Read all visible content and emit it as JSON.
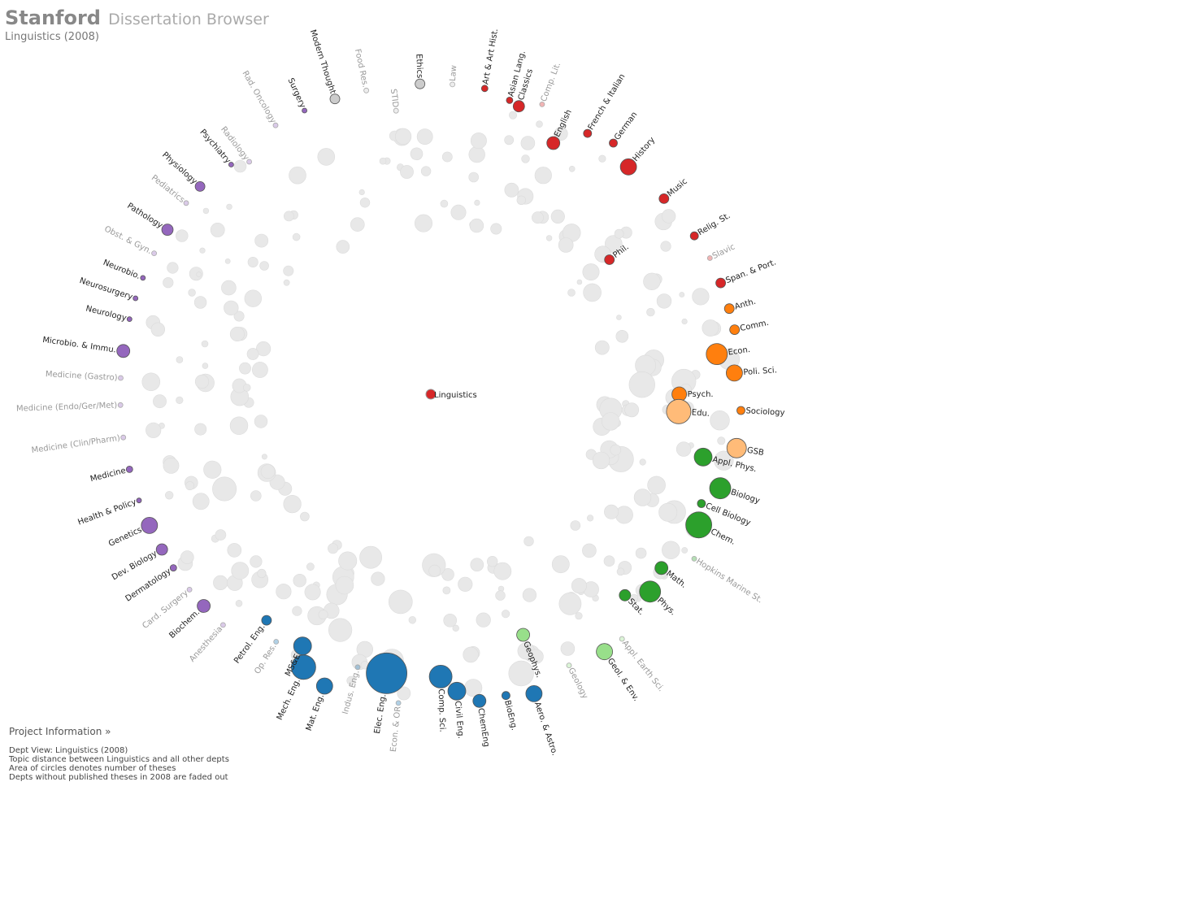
{
  "header": {
    "brand": "Stanford",
    "app_title": "Dissertation Browser",
    "subtitle": "Linguistics (2008)"
  },
  "footer": {
    "project_link": "Project Information »",
    "notes": [
      "Dept View: Linguistics (2008)",
      "Topic distance between Linguistics and all other depts",
      "Area of circles denotes number of theses",
      "Depts without published theses in 2008 are faded out"
    ]
  },
  "colors": {
    "humanities": "#d62728",
    "social": "#ff7f0e",
    "social_light": "#ffbb78",
    "science": "#2ca02c",
    "earth": "#98df8a",
    "engineering": "#1f77b4",
    "medicine": "#9467bd",
    "neutral": "#cccccc"
  },
  "chart_data": {
    "type": "scatter",
    "center": {
      "label": "Linguistics",
      "group": "humanities"
    },
    "departments": [
      {
        "label": "Classics",
        "angle": -73,
        "dist": 0.97,
        "size": 7,
        "group": "humanities",
        "active": true
      },
      {
        "label": "Comp. Lit.",
        "angle": -69,
        "dist": 1.0,
        "size": 3,
        "group": "humanities",
        "active": false
      },
      {
        "label": "English",
        "angle": -64,
        "dist": 0.9,
        "size": 8,
        "group": "humanities",
        "active": true
      },
      {
        "label": "French & Italian",
        "angle": -59,
        "dist": 0.98,
        "size": 5,
        "group": "humanities",
        "active": true
      },
      {
        "label": "German",
        "angle": -54,
        "dist": 1.0,
        "size": 5,
        "group": "humanities",
        "active": true
      },
      {
        "label": "History",
        "angle": -49,
        "dist": 0.97,
        "size": 10,
        "group": "humanities",
        "active": true
      },
      {
        "label": "Music",
        "angle": -40,
        "dist": 0.98,
        "size": 6,
        "group": "humanities",
        "active": true
      },
      {
        "label": "Relig. St.",
        "angle": -31,
        "dist": 0.99,
        "size": 5,
        "group": "humanities",
        "active": true
      },
      {
        "label": "Slavic",
        "angle": -26,
        "dist": 1.0,
        "size": 3,
        "group": "humanities",
        "active": false
      },
      {
        "label": "Span. & Port.",
        "angle": -21,
        "dist": 1.0,
        "size": 6,
        "group": "humanities",
        "active": true
      },
      {
        "label": "Phil.",
        "angle": -37,
        "dist": 0.72,
        "size": 6,
        "group": "humanities",
        "active": true
      },
      {
        "label": "Anth.",
        "angle": -16,
        "dist": 1.0,
        "size": 6,
        "group": "social",
        "active": true
      },
      {
        "label": "Comm.",
        "angle": -12,
        "dist": 1.0,
        "size": 6,
        "group": "social",
        "active": true
      },
      {
        "label": "Econ.",
        "angle": -8,
        "dist": 0.93,
        "size": 13,
        "group": "social",
        "active": true
      },
      {
        "label": "Poli. Sci.",
        "angle": -4,
        "dist": 0.98,
        "size": 10,
        "group": "social",
        "active": true
      },
      {
        "label": "Psych.",
        "angle": 0,
        "dist": 0.8,
        "size": 9,
        "group": "social",
        "active": true
      },
      {
        "label": "Sociology",
        "angle": 3,
        "dist": 1.0,
        "size": 5,
        "group": "social",
        "active": true
      },
      {
        "label": "Edu.",
        "angle": 4,
        "dist": 0.8,
        "size": 15,
        "group": "social_light",
        "active": true
      },
      {
        "label": "GSB",
        "angle": 10,
        "dist": 1.0,
        "size": 12,
        "group": "social_light",
        "active": true
      },
      {
        "label": "Appl. Phys.",
        "angle": 13,
        "dist": 0.9,
        "size": 11,
        "group": "science",
        "active": true
      },
      {
        "label": "Biology",
        "angle": 18,
        "dist": 0.98,
        "size": 13,
        "group": "science",
        "active": true
      },
      {
        "label": "Cell Biology",
        "angle": 22,
        "dist": 0.94,
        "size": 5,
        "group": "science",
        "active": true
      },
      {
        "label": "Chem.",
        "angle": 26,
        "dist": 0.96,
        "size": 16,
        "group": "science",
        "active": true
      },
      {
        "label": "Hopkins Marine St.",
        "angle": 32,
        "dist": 1.0,
        "size": 3,
        "group": "science",
        "active": false
      },
      {
        "label": "Math.",
        "angle": 37,
        "dist": 0.93,
        "size": 8,
        "group": "science",
        "active": true
      },
      {
        "label": "Phys.",
        "angle": 42,
        "dist": 0.95,
        "size": 13,
        "group": "science",
        "active": true
      },
      {
        "label": "Stat.",
        "angle": 46,
        "dist": 0.9,
        "size": 7,
        "group": "science",
        "active": true
      },
      {
        "label": "Appl. Earth Sci.",
        "angle": 52,
        "dist": 1.0,
        "size": 3,
        "group": "earth",
        "active": false
      },
      {
        "label": "Geol. & Env.",
        "angle": 56,
        "dist": 1.0,
        "size": 10,
        "group": "earth",
        "active": true
      },
      {
        "label": "Geology",
        "angle": 63,
        "dist": 0.98,
        "size": 3,
        "group": "earth",
        "active": false
      },
      {
        "label": "Geophys.",
        "angle": 69,
        "dist": 0.83,
        "size": 8,
        "group": "earth",
        "active": true
      },
      {
        "label": "Aero. & Astro.",
        "angle": 71,
        "dist": 1.02,
        "size": 10,
        "group": "engineering",
        "active": true
      },
      {
        "label": "BioEng.",
        "angle": 76,
        "dist": 1.0,
        "size": 5,
        "group": "engineering",
        "active": true
      },
      {
        "label": "ChemEng",
        "angle": 81,
        "dist": 1.0,
        "size": 8,
        "group": "engineering",
        "active": true
      },
      {
        "label": "Civil Eng.",
        "angle": 85,
        "dist": 0.96,
        "size": 11,
        "group": "engineering",
        "active": true
      },
      {
        "label": "Comp. Sci.",
        "angle": 88,
        "dist": 0.91,
        "size": 14,
        "group": "engineering",
        "active": true
      },
      {
        "label": "Econ. & OR",
        "angle": 96,
        "dist": 1.0,
        "size": 3,
        "group": "engineering",
        "active": false
      },
      {
        "label": "Elec. Eng.",
        "angle": 99,
        "dist": 0.91,
        "size": 25,
        "group": "engineering",
        "active": true
      },
      {
        "label": "Indus. Eng.",
        "angle": 105,
        "dist": 0.91,
        "size": 3,
        "group": "engineering",
        "active": false
      },
      {
        "label": "Mat. Eng.",
        "angle": 110,
        "dist": 1.0,
        "size": 10,
        "group": "engineering",
        "active": true
      },
      {
        "label": "Mech. Eng.",
        "angle": 115,
        "dist": 0.97,
        "size": 15,
        "group": "engineering",
        "active": true
      },
      {
        "label": "MS&E",
        "angle": 117,
        "dist": 0.91,
        "size": 11,
        "group": "engineering",
        "active": true
      },
      {
        "label": "Op. Res.",
        "angle": 122,
        "dist": 0.94,
        "size": 3,
        "group": "engineering",
        "active": false
      },
      {
        "label": "Petrol. Eng.",
        "angle": 126,
        "dist": 0.9,
        "size": 6,
        "group": "engineering",
        "active": true
      },
      {
        "label": "Anesthesia",
        "angle": 132,
        "dist": 1.0,
        "size": 3,
        "group": "medicine",
        "active": false
      },
      {
        "label": "Biochem.",
        "angle": 137,
        "dist": 1.0,
        "size": 8,
        "group": "medicine",
        "active": true
      },
      {
        "label": "Card. Surgery",
        "angle": 141,
        "dist": 1.0,
        "size": 3,
        "group": "medicine",
        "active": false
      },
      {
        "label": "Dermatology",
        "angle": 146,
        "dist": 1.0,
        "size": 4,
        "group": "medicine",
        "active": true
      },
      {
        "label": "Dev. Biology",
        "angle": 150,
        "dist": 1.0,
        "size": 7,
        "group": "medicine",
        "active": true
      },
      {
        "label": "Genetics",
        "angle": 155,
        "dist": 1.0,
        "size": 10,
        "group": "medicine",
        "active": true
      },
      {
        "label": "Health & Policy",
        "angle": 160,
        "dist": 1.0,
        "size": 3,
        "group": "medicine",
        "active": true
      },
      {
        "label": "Medicine",
        "angle": 166,
        "dist": 1.0,
        "size": 4,
        "group": "medicine",
        "active": true
      },
      {
        "label": "Medicine (Clin/Pharm)",
        "angle": 172,
        "dist": 1.0,
        "size": 3,
        "group": "medicine",
        "active": false
      },
      {
        "label": "Medicine (Endo/Ger/Met)",
        "angle": 178,
        "dist": 1.0,
        "size": 3,
        "group": "medicine",
        "active": false
      },
      {
        "label": "Medicine (Gastro)",
        "angle": 183,
        "dist": 1.0,
        "size": 3,
        "group": "medicine",
        "active": false
      },
      {
        "label": "Microbio. & Immu.",
        "angle": 188,
        "dist": 1.0,
        "size": 8,
        "group": "medicine",
        "active": true
      },
      {
        "label": "Neurology",
        "angle": 194,
        "dist": 1.0,
        "size": 3,
        "group": "medicine",
        "active": true
      },
      {
        "label": "Neurosurgery",
        "angle": 198,
        "dist": 1.0,
        "size": 3,
        "group": "medicine",
        "active": true
      },
      {
        "label": "Neurobio.",
        "angle": 202,
        "dist": 1.0,
        "size": 3,
        "group": "medicine",
        "active": true
      },
      {
        "label": "Obst. & Gyn.",
        "angle": 207,
        "dist": 1.0,
        "size": 3,
        "group": "medicine",
        "active": false
      },
      {
        "label": "Pathology",
        "angle": 212,
        "dist": 1.0,
        "size": 7,
        "group": "medicine",
        "active": true
      },
      {
        "label": "Pediatrics",
        "angle": 218,
        "dist": 1.0,
        "size": 3,
        "group": "medicine",
        "active": false
      },
      {
        "label": "Physiology",
        "angle": 222,
        "dist": 1.0,
        "size": 6,
        "group": "medicine",
        "active": true
      },
      {
        "label": "Psychiatry",
        "angle": 229,
        "dist": 0.98,
        "size": 3,
        "group": "medicine",
        "active": true
      },
      {
        "label": "Radiology",
        "angle": 232,
        "dist": 0.95,
        "size": 3,
        "group": "medicine",
        "active": false
      },
      {
        "label": "Rad. Oncology",
        "angle": 240,
        "dist": 1.0,
        "size": 3,
        "group": "medicine",
        "active": false
      },
      {
        "label": "Surgery",
        "angle": 246,
        "dist": 1.0,
        "size": 3,
        "group": "medicine",
        "active": true
      },
      {
        "label": "Modern Thought",
        "angle": 252,
        "dist": 1.0,
        "size": 6,
        "group": "neutral",
        "active": true
      },
      {
        "label": "Food Res.",
        "angle": 258,
        "dist": 1.0,
        "size": 3,
        "group": "neutral",
        "active": false
      },
      {
        "label": "STID",
        "angle": 263,
        "dist": 0.92,
        "size": 3,
        "group": "neutral",
        "active": false
      },
      {
        "label": "Ethics",
        "angle": 268,
        "dist": 1.0,
        "size": 6,
        "group": "neutral",
        "active": true
      },
      {
        "label": "Law",
        "angle": 274,
        "dist": 1.0,
        "size": 3,
        "group": "neutral",
        "active": false
      },
      {
        "label": "Art & Art Hist.",
        "angle": 280,
        "dist": 1.0,
        "size": 4,
        "group": "humanities",
        "active": true
      },
      {
        "label": "Asian Lang.",
        "angle": 285,
        "dist": 0.98,
        "size": 4,
        "group": "humanities",
        "active": true
      }
    ]
  }
}
